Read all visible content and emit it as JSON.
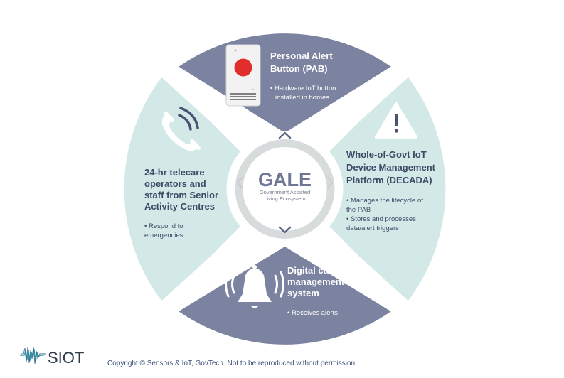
{
  "center": {
    "title": "GALE",
    "subtitle_line1": "Government Assisted",
    "subtitle_line2": "Living Ecosystem"
  },
  "segments": {
    "top": {
      "title_line1": "Personal Alert",
      "title_line2": "Button (PAB)",
      "bullet_line1": "• Hardware IoT button",
      "bullet_line2": "installed in homes",
      "icon": "alert-button-device-icon"
    },
    "right": {
      "title_line1": "Whole-of-Govt IoT",
      "title_line2": "Device Management",
      "title_line3": "Platform (DECADA)",
      "bullets": [
        {
          "line1": "• Manages the lifecycle of",
          "line2": "the PAB"
        },
        {
          "line1": "• Stores and processes",
          "line2": "data/alert triggers"
        }
      ],
      "icon": "warning-triangle-icon"
    },
    "bottom": {
      "title_line1": "Digital case",
      "title_line2": "management",
      "title_line3": "system",
      "bullet_line1": "• Receives alerts",
      "icon": "ringing-bell-icon"
    },
    "left": {
      "title_line1": "24-hr telecare",
      "title_line2": "operators and",
      "title_line3": "staff from Senior",
      "title_line4": "Activity Centres",
      "bullet_line1": "• Respond to",
      "bullet_line2": "emergencies",
      "icon": "phone-call-icon"
    }
  },
  "logo": {
    "text": "SIOT"
  },
  "copyright": "Copyright © Sensors & IoT, GovTech. Not to be reproduced without permission.",
  "colors": {
    "slate": "#7b83a0",
    "mint": "#d3e9e8",
    "ring": "#d8dbdc",
    "inner": "#ffffff",
    "title_on_slate": "#ffffff",
    "title_on_mint": "#3f4a67",
    "gale_text": "#6f7794",
    "chevron": "#5c6584"
  }
}
